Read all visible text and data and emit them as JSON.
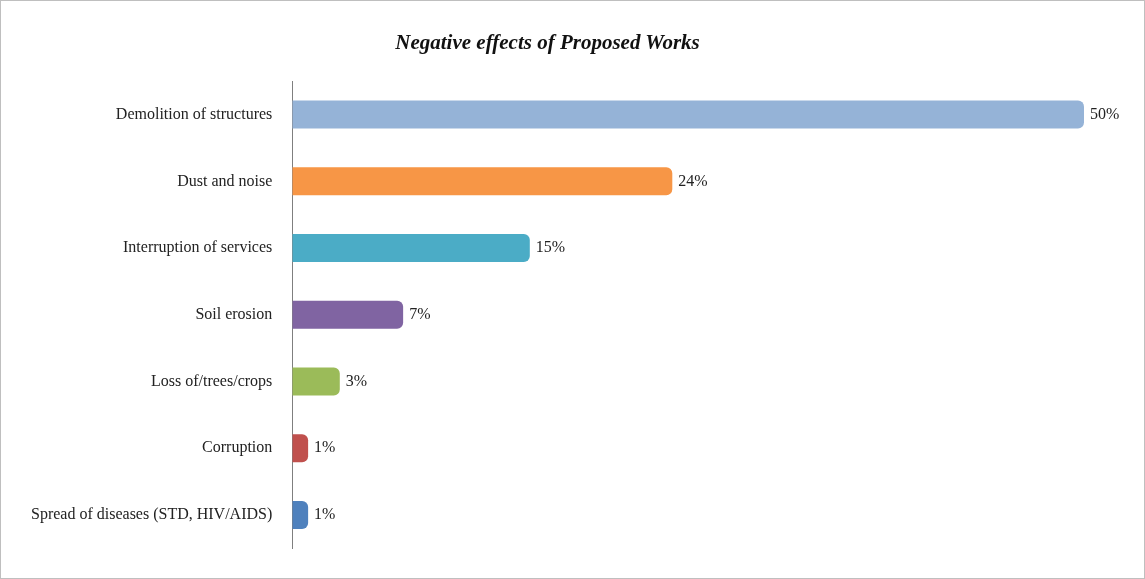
{
  "chart_data": {
    "type": "bar",
    "orientation": "horizontal",
    "title": "Negative effects of Proposed Works",
    "categories": [
      "Demolition of structures",
      "Dust and noise",
      "Interruption of services",
      "Soil erosion",
      "Loss of/trees/crops",
      "Corruption",
      "Spread of diseases (STD, HIV/AIDS)"
    ],
    "values": [
      50,
      24,
      15,
      7,
      3,
      1,
      1
    ],
    "colors": [
      "#95b3d7",
      "#f79646",
      "#4bacc6",
      "#8064a2",
      "#9bbb59",
      "#c0504d",
      "#4f81bd"
    ],
    "value_labels": [
      "50%",
      "24%",
      "15%",
      "7%",
      "3%",
      "1%",
      "1%"
    ],
    "tick_labels": "y",
    "grid": false,
    "legend": false
  }
}
